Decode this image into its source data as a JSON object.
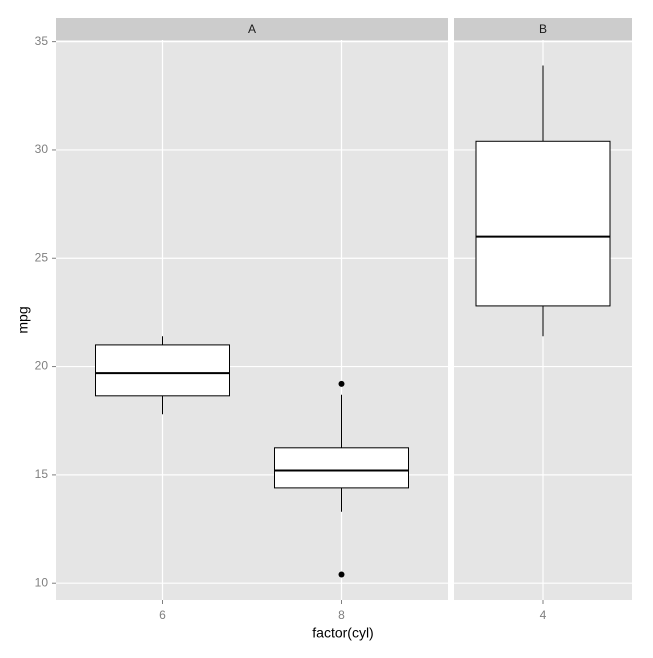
{
  "chart_data": {
    "type": "boxplot",
    "x_label": "factor(cyl)",
    "y_label": "mpg",
    "ylim": [
      9.225,
      35.075
    ],
    "yticks": [
      10,
      15,
      20,
      25,
      30,
      35
    ],
    "grid": true,
    "box_color": "#ffffff",
    "line_color": "#000000",
    "panels": [
      {
        "title": "A",
        "categories": [
          "6",
          "8"
        ],
        "boxes": [
          {
            "min": 17.8,
            "q1": 18.65,
            "median": 19.7,
            "q3": 21.0,
            "max": 21.4,
            "outliers": []
          },
          {
            "min": 13.3,
            "q1": 14.4,
            "median": 15.2,
            "q3": 16.25,
            "max": 18.7,
            "outliers": [
              19.2,
              10.4
            ]
          }
        ]
      },
      {
        "title": "B",
        "categories": [
          "4"
        ],
        "boxes": [
          {
            "min": 21.4,
            "q1": 22.8,
            "median": 26.0,
            "q3": 30.4,
            "max": 33.9,
            "outliers": []
          }
        ]
      }
    ]
  }
}
